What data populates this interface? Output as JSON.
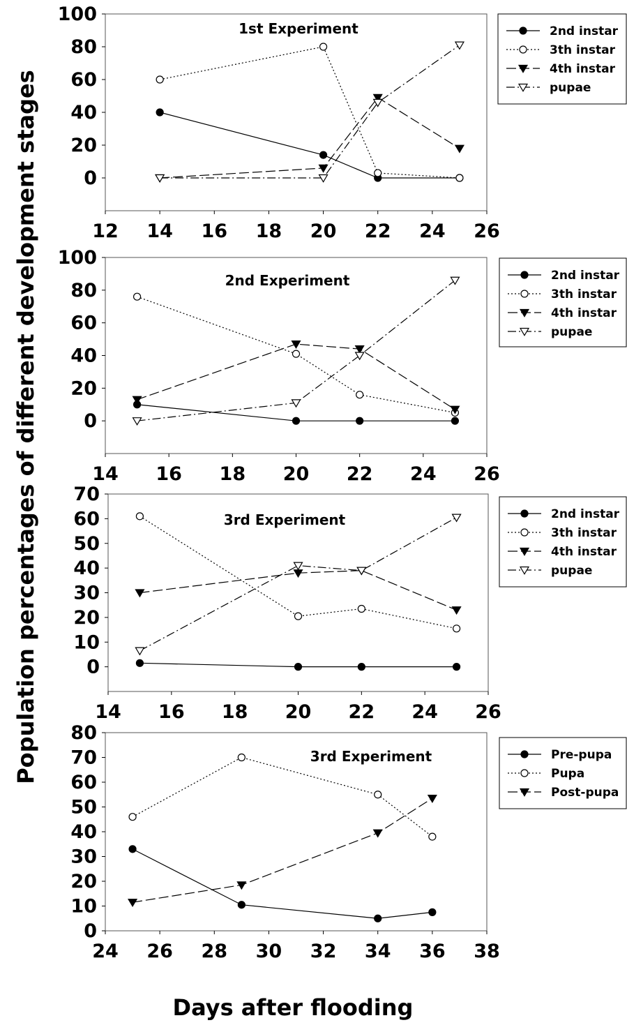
{
  "figure": {
    "ylabel": "Population percentages of different development stages",
    "xlabel": "Days after flooding"
  },
  "chart_data": [
    {
      "type": "line",
      "title": "1st Experiment",
      "xlim": [
        12,
        26
      ],
      "ylim": [
        -20,
        100
      ],
      "xticks": [
        12,
        14,
        16,
        18,
        20,
        22,
        24,
        26
      ],
      "yticks": [
        0,
        20,
        40,
        60,
        80,
        100
      ],
      "x": [
        14,
        20,
        22,
        25
      ],
      "series": [
        {
          "name": "2nd instar",
          "marker": "filled-circle",
          "line": "solid",
          "values": [
            40,
            14,
            0,
            0
          ]
        },
        {
          "name": "3th instar",
          "marker": "open-circle",
          "line": "dotted",
          "values": [
            60,
            80,
            3,
            0
          ]
        },
        {
          "name": "4th instar",
          "marker": "filled-triangle-down",
          "line": "dashed",
          "values": [
            0,
            6,
            49,
            18
          ]
        },
        {
          "name": "pupae",
          "marker": "open-triangle-down",
          "line": "dashdot",
          "values": [
            0,
            0,
            46,
            81
          ]
        }
      ]
    },
    {
      "type": "line",
      "title": "2nd Experiment",
      "xlim": [
        14,
        26
      ],
      "ylim": [
        -20,
        100
      ],
      "xticks": [
        14,
        16,
        18,
        20,
        22,
        24,
        26
      ],
      "yticks": [
        0,
        20,
        40,
        60,
        80,
        100
      ],
      "x": [
        15,
        20,
        22,
        25
      ],
      "series": [
        {
          "name": "2nd instar",
          "marker": "filled-circle",
          "line": "solid",
          "values": [
            10,
            0,
            0,
            0
          ]
        },
        {
          "name": "3th instar",
          "marker": "open-circle",
          "line": "dotted",
          "values": [
            76,
            41,
            16,
            5
          ]
        },
        {
          "name": "4th instar",
          "marker": "filled-triangle-down",
          "line": "dashed",
          "values": [
            13,
            47,
            44,
            7
          ]
        },
        {
          "name": "pupae",
          "marker": "open-triangle-down",
          "line": "dashdot",
          "values": [
            0,
            11,
            40,
            86
          ]
        }
      ]
    },
    {
      "type": "line",
      "title": "3rd Experiment",
      "xlim": [
        14,
        26
      ],
      "ylim": [
        -10,
        70
      ],
      "xticks": [
        14,
        16,
        18,
        20,
        22,
        24,
        26
      ],
      "yticks": [
        0,
        10,
        20,
        30,
        40,
        50,
        60,
        70
      ],
      "x": [
        15,
        20,
        22,
        25
      ],
      "series": [
        {
          "name": "2nd instar",
          "marker": "filled-circle",
          "line": "solid",
          "values": [
            1.5,
            0,
            0,
            0
          ]
        },
        {
          "name": "3th instar",
          "marker": "open-circle",
          "line": "dotted",
          "values": [
            61,
            20.5,
            23.5,
            15.5
          ]
        },
        {
          "name": "4th instar",
          "marker": "filled-triangle-down",
          "line": "dashed",
          "values": [
            30,
            38,
            39,
            23
          ]
        },
        {
          "name": "pupae",
          "marker": "open-triangle-down",
          "line": "dashdot",
          "values": [
            6.5,
            41,
            39,
            60.5
          ]
        }
      ]
    },
    {
      "type": "line",
      "title": "3rd Experiment",
      "xlim": [
        24,
        38
      ],
      "ylim": [
        0,
        80
      ],
      "xticks": [
        24,
        26,
        28,
        30,
        32,
        34,
        36,
        38
      ],
      "yticks": [
        0,
        10,
        20,
        30,
        40,
        50,
        60,
        70,
        80
      ],
      "x": [
        25,
        29,
        34,
        36
      ],
      "series": [
        {
          "name": "Pre-pupa",
          "marker": "filled-circle",
          "line": "solid",
          "values": [
            33,
            10.5,
            5,
            7.5
          ]
        },
        {
          "name": "Pupa",
          "marker": "open-circle",
          "line": "dotted",
          "values": [
            46,
            70,
            55,
            38
          ]
        },
        {
          "name": "Post-pupa",
          "marker": "filled-triangle-down",
          "line": "dashed",
          "values": [
            11.5,
            18.5,
            39.5,
            53.5
          ]
        }
      ]
    }
  ]
}
